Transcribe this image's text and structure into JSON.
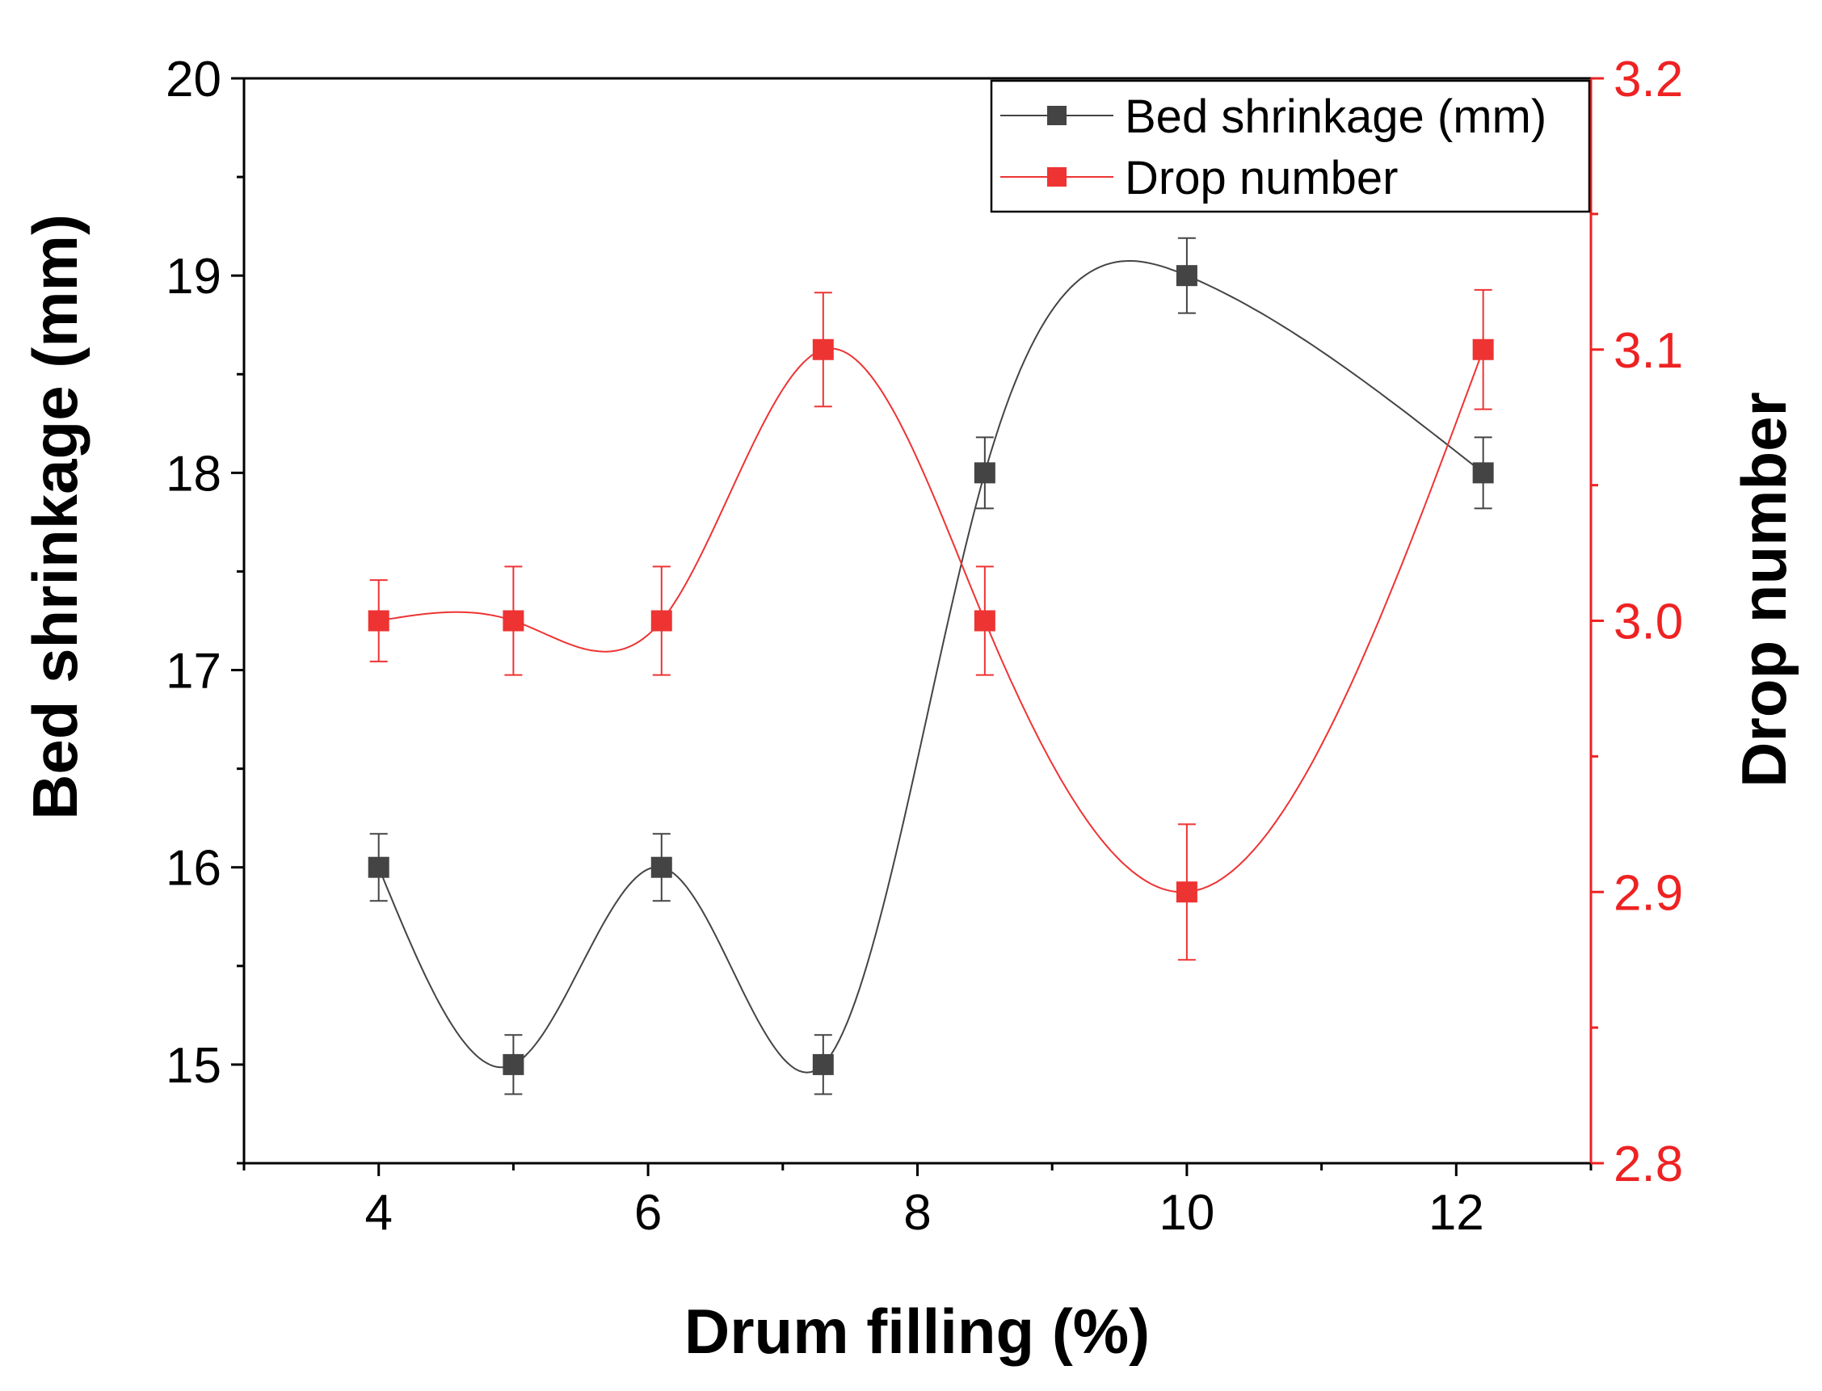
{
  "chart_data": {
    "type": "line",
    "title": "",
    "xlabel": "Drum filling (%)",
    "xlim": [
      3,
      13
    ],
    "xticks": [
      4,
      6,
      8,
      10,
      12
    ],
    "x_tick_labels": [
      "4",
      "6",
      "8",
      "10",
      "12"
    ],
    "grid": false,
    "legend_position": "top-right",
    "y_left": {
      "label": "Bed shrinkage (mm)",
      "lim": [
        14.5,
        20
      ],
      "ticks": [
        15,
        16,
        17,
        18,
        19,
        20
      ],
      "tick_labels": [
        "15",
        "16",
        "17",
        "18",
        "19",
        "20"
      ],
      "color": "#000000"
    },
    "y_right": {
      "label": "Drop number",
      "lim": [
        2.8,
        3.2
      ],
      "ticks": [
        2.8,
        2.9,
        3.0,
        3.1,
        3.2
      ],
      "tick_labels": [
        "2.8",
        "2.9",
        "3.0",
        "3.1",
        "3.2"
      ],
      "color": "#ee2222"
    },
    "series": [
      {
        "name": "Bed shrinkage (mm)",
        "axis": "left",
        "color": "#444444",
        "x": [
          4,
          5,
          6.1,
          7.3,
          8.5,
          10,
          12.2
        ],
        "values": [
          16,
          15,
          16,
          15,
          18,
          19,
          18
        ],
        "errors": [
          0.17,
          0.15,
          0.17,
          0.15,
          0.18,
          0.19,
          0.18
        ]
      },
      {
        "name": "Drop number",
        "axis": "right",
        "color": "#ee3333",
        "x": [
          4,
          5,
          6.1,
          7.3,
          8.5,
          10,
          12.2
        ],
        "values": [
          3.0,
          3.0,
          3.0,
          3.1,
          3.0,
          2.9,
          3.1
        ],
        "errors": [
          0.015,
          0.02,
          0.02,
          0.021,
          0.02,
          0.025,
          0.022
        ]
      }
    ]
  }
}
